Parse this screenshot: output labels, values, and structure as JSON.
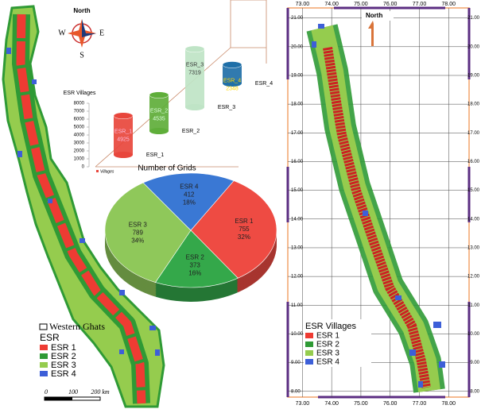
{
  "left_map": {
    "compass": {
      "north": "North",
      "west": "W",
      "east": "E",
      "south": "S"
    },
    "legend": {
      "boundary": "Western Ghats",
      "title": "ESR",
      "items": [
        "ESR 1",
        "ESR 2",
        "ESR 3",
        "ESR 4"
      ],
      "colors": [
        "#ee3b33",
        "#2f9a35",
        "#95cc4e",
        "#3d5fd8"
      ]
    },
    "scale_bar": [
      "0",
      "100",
      "200 km"
    ]
  },
  "chart_data": [
    {
      "type": "bar",
      "title": "ESR Villages",
      "legend": "Villages",
      "categories": [
        "ESR_1",
        "ESR_2",
        "ESR_3",
        "ESR_4"
      ],
      "values": [
        4925,
        4535,
        7319,
        2348
      ],
      "colors": [
        "#e8463c",
        "#5fae3a",
        "#bfe4c6",
        "#1f6fa8"
      ],
      "ylim": [
        0,
        8000
      ],
      "yticks": [
        0,
        1000,
        2000,
        3000,
        4000,
        5000,
        6000,
        7000,
        8000
      ]
    },
    {
      "type": "pie",
      "title": "Number of Grids",
      "categories": [
        "ESR 1",
        "ESR 2",
        "ESR 3",
        "ESR 4"
      ],
      "values": [
        755,
        373,
        789,
        412
      ],
      "percents": [
        32,
        16,
        34,
        18
      ],
      "percent_labels": [
        "32%",
        "16%",
        "34%",
        "18%"
      ],
      "colors": [
        "#ee4b43",
        "#34a84a",
        "#8fc85a",
        "#3a78d4"
      ]
    }
  ],
  "right_map": {
    "north": "North",
    "legend": {
      "title": "ESR  Villages",
      "items": [
        "ESR 1",
        "ESR 2",
        "ESR 3",
        "ESR 4"
      ],
      "colors": [
        "#ee3b33",
        "#2f9a35",
        "#95cc4e",
        "#3d5fd8"
      ]
    },
    "xlim": [
      72.5,
      78.7
    ],
    "ylim": [
      7.8,
      21.35
    ],
    "xticks": [
      {
        "value": 73,
        "label": "73.00"
      },
      {
        "value": 74,
        "label": "74.00"
      },
      {
        "value": 75,
        "label": "75.00"
      },
      {
        "value": 76,
        "label": "76.00"
      },
      {
        "value": 77,
        "label": "77.00"
      },
      {
        "value": 78,
        "label": "78.00"
      }
    ],
    "yticks": [
      {
        "value": 8,
        "label": "8.00"
      },
      {
        "value": 9,
        "label": "9.00"
      },
      {
        "value": 10,
        "label": "10.00"
      },
      {
        "value": 11,
        "label": "11.00"
      },
      {
        "value": 12,
        "label": "12.00"
      },
      {
        "value": 13,
        "label": "13.00"
      },
      {
        "value": 14,
        "label": "14.00"
      },
      {
        "value": 15,
        "label": "15.00"
      },
      {
        "value": 16,
        "label": "16.00"
      },
      {
        "value": 17,
        "label": "17.00"
      },
      {
        "value": 18,
        "label": "18.00"
      },
      {
        "value": 19,
        "label": "19.00"
      },
      {
        "value": 20,
        "label": "20.00"
      },
      {
        "value": 21,
        "label": "21.00"
      }
    ]
  }
}
